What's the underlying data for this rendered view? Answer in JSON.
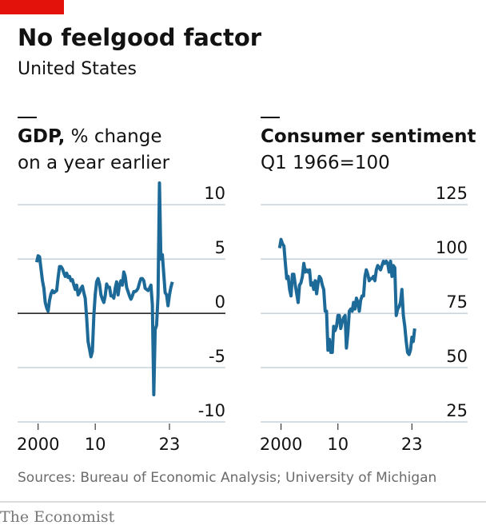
{
  "title": "No feelgood factor",
  "subtitle": "United States",
  "source": "Sources: Bureau of Economic Analysis; University of Michigan",
  "brand": "The Economist",
  "chart_data": [
    {
      "type": "line",
      "title": "GDP,",
      "subtitle": "% change on a year earlier",
      "x": [
        1999.75,
        2000,
        2000.25,
        2000.5,
        2000.75,
        2001,
        2001.25,
        2001.5,
        2001.75,
        2002,
        2002.25,
        2002.5,
        2002.75,
        2003,
        2003.25,
        2003.5,
        2003.75,
        2004,
        2004.25,
        2004.5,
        2004.75,
        2005,
        2005.25,
        2005.5,
        2005.75,
        2006,
        2006.25,
        2006.5,
        2006.75,
        2007,
        2007.25,
        2007.5,
        2007.75,
        2008,
        2008.25,
        2008.5,
        2008.75,
        2009,
        2009.25,
        2009.5,
        2009.75,
        2010,
        2010.25,
        2010.5,
        2010.75,
        2011,
        2011.25,
        2011.5,
        2011.75,
        2012,
        2012.25,
        2012.5,
        2012.75,
        2013,
        2013.25,
        2013.5,
        2013.75,
        2014,
        2014.25,
        2014.5,
        2014.75,
        2015,
        2015.25,
        2015.5,
        2015.75,
        2016,
        2016.25,
        2016.5,
        2016.75,
        2017,
        2017.25,
        2017.5,
        2017.75,
        2018,
        2018.25,
        2018.5,
        2018.75,
        2019,
        2019.25,
        2019.5,
        2019.75,
        2020,
        2020.25,
        2020.5,
        2020.75,
        2021,
        2021.25,
        2021.5,
        2021.75,
        2022,
        2022.25,
        2022.5,
        2022.75,
        2023,
        2023.25,
        2023.5
      ],
      "series": [
        {
          "name": "GDP",
          "color": "#1d6a98",
          "values": [
            4.7,
            5.3,
            5.2,
            4.1,
            3.0,
            2.3,
            1.0,
            0.5,
            0.2,
            1.2,
            1.8,
            2.1,
            1.9,
            2.0,
            2.1,
            3.3,
            4.3,
            4.3,
            4.1,
            3.7,
            3.4,
            3.7,
            3.3,
            3.4,
            3.0,
            3.1,
            2.6,
            2.2,
            2.6,
            1.7,
            1.9,
            2.3,
            2.5,
            1.9,
            1.4,
            -0.4,
            -2.6,
            -3.3,
            -4.0,
            -3.5,
            -0.2,
            1.7,
            2.9,
            3.2,
            2.7,
            1.7,
            1.3,
            1.0,
            1.6,
            2.7,
            2.4,
            2.4,
            1.6,
            1.6,
            1.4,
            2.3,
            2.9,
            1.7,
            2.6,
            3.0,
            2.6,
            3.8,
            3.4,
            2.4,
            2.0,
            1.6,
            1.3,
            1.6,
            2.0,
            2.0,
            2.1,
            2.3,
            2.8,
            3.2,
            3.2,
            3.0,
            2.3,
            2.2,
            2.1,
            2.3,
            2.6,
            0.8,
            -7.5,
            -1.5,
            -1.1,
            1.6,
            12.0,
            5.0,
            5.4,
            3.6,
            1.9,
            1.7,
            0.7,
            1.7,
            2.4,
            2.9
          ]
        }
      ],
      "xlim": [
        1996.4,
        2032.8
      ],
      "xticks": [
        2000,
        {
          "value": 2010,
          "label": "10"
        },
        {
          "value": 2023,
          "label": "23"
        }
      ],
      "ylim": [
        -10,
        12
      ],
      "yticks": [
        -10,
        -5,
        0,
        5,
        10
      ],
      "grid": true
    },
    {
      "type": "line",
      "title": "Consumer sentiment",
      "subtitle": "Q1 1966=100",
      "x": [
        1999.75,
        2000,
        2000.25,
        2000.5,
        2000.75,
        2001,
        2001.25,
        2001.5,
        2001.75,
        2002,
        2002.25,
        2002.5,
        2002.75,
        2003,
        2003.25,
        2003.5,
        2003.75,
        2004,
        2004.25,
        2004.5,
        2004.75,
        2005,
        2005.25,
        2005.5,
        2005.75,
        2006,
        2006.25,
        2006.5,
        2006.75,
        2007,
        2007.25,
        2007.5,
        2007.75,
        2008,
        2008.25,
        2008.5,
        2008.75,
        2009,
        2009.25,
        2009.5,
        2009.75,
        2010,
        2010.25,
        2010.5,
        2010.75,
        2011,
        2011.25,
        2011.5,
        2011.75,
        2012,
        2012.25,
        2012.5,
        2012.75,
        2013,
        2013.25,
        2013.5,
        2013.75,
        2014,
        2014.25,
        2014.5,
        2014.75,
        2015,
        2015.25,
        2015.5,
        2015.75,
        2016,
        2016.25,
        2016.5,
        2016.75,
        2017,
        2017.25,
        2017.5,
        2017.75,
        2018,
        2018.25,
        2018.5,
        2018.75,
        2019,
        2019.25,
        2019.5,
        2019.75,
        2020,
        2020.25,
        2020.5,
        2020.75,
        2021,
        2021.25,
        2021.5,
        2021.75,
        2022,
        2022.25,
        2022.5,
        2022.75,
        2023,
        2023.25,
        2023.5
      ],
      "series": [
        {
          "name": "Consumer sentiment",
          "color": "#1d6a98",
          "values": [
            105,
            109,
            107,
            106,
            98,
            91,
            92,
            86,
            83,
            93,
            93,
            88,
            84,
            80,
            88,
            89,
            92,
            98,
            94,
            95,
            94,
            95,
            88,
            89,
            86,
            90,
            84,
            89,
            92,
            91,
            88,
            86,
            76,
            76,
            58,
            63,
            57,
            57,
            69,
            67,
            69,
            74,
            74,
            68,
            71,
            73,
            74,
            59,
            66,
            76,
            77,
            76,
            80,
            77,
            82,
            80,
            76,
            81,
            83,
            83,
            92,
            95,
            93,
            90,
            91,
            91,
            92,
            90,
            95,
            97,
            96,
            95,
            97,
            99,
            98,
            99,
            98,
            94,
            99,
            92,
            97,
            96,
            74,
            77,
            78,
            80,
            86,
            74,
            69,
            62,
            57,
            56,
            58,
            64,
            62,
            68
          ]
        }
      ],
      "xlim": [
        1996.4,
        2032.8
      ],
      "xticks": [
        2000,
        {
          "value": 2010,
          "label": "10"
        },
        {
          "value": 2023,
          "label": "23"
        }
      ],
      "ylim": [
        25,
        135
      ],
      "yticks": [
        25,
        50,
        75,
        100,
        125
      ],
      "grid": true
    }
  ]
}
